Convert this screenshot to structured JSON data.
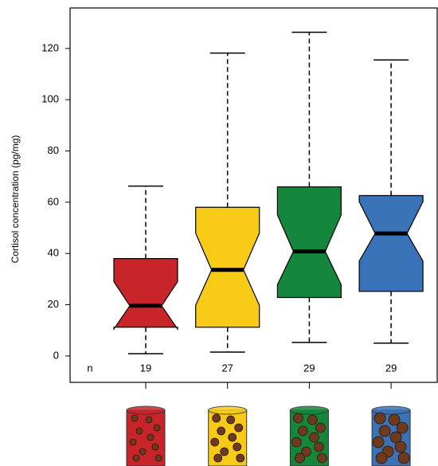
{
  "chart_data": {
    "type": "boxplot",
    "y_label": "Cortisol concentration (pg/mg)",
    "categories": [
      null,
      null,
      null,
      null
    ],
    "boxes": [
      {
        "color": "#c8252a",
        "whisker_low": 0.9,
        "q1": 11.2,
        "notch_low": 10.5,
        "median": 19.6,
        "notch_high": 29,
        "q3": 38,
        "whisker_high": 66.3
      },
      {
        "color": "#f7cb15",
        "whisker_low": 1.5,
        "q1": 11.2,
        "notch_low": 19.8,
        "median": 33.6,
        "notch_high": 47.9,
        "q3": 58,
        "whisker_high": 118.2
      },
      {
        "color": "#15873c",
        "whisker_low": 5.3,
        "q1": 22.8,
        "notch_low": 27.8,
        "median": 40.8,
        "notch_high": 55,
        "q3": 66,
        "whisker_high": 126.3
      },
      {
        "color": "#3a72b8",
        "whisker_low": 5,
        "q1": 25.2,
        "notch_low": 37,
        "median": 47.8,
        "notch_high": 60.2,
        "q3": 62.6,
        "whisker_high": 115.5
      }
    ],
    "n_label": "n",
    "n_values": [
      19,
      27,
      29,
      29
    ],
    "ylim": [
      -10.3,
      135.8
    ],
    "yticks": [
      0,
      20,
      40,
      60,
      80,
      100,
      120
    ]
  }
}
